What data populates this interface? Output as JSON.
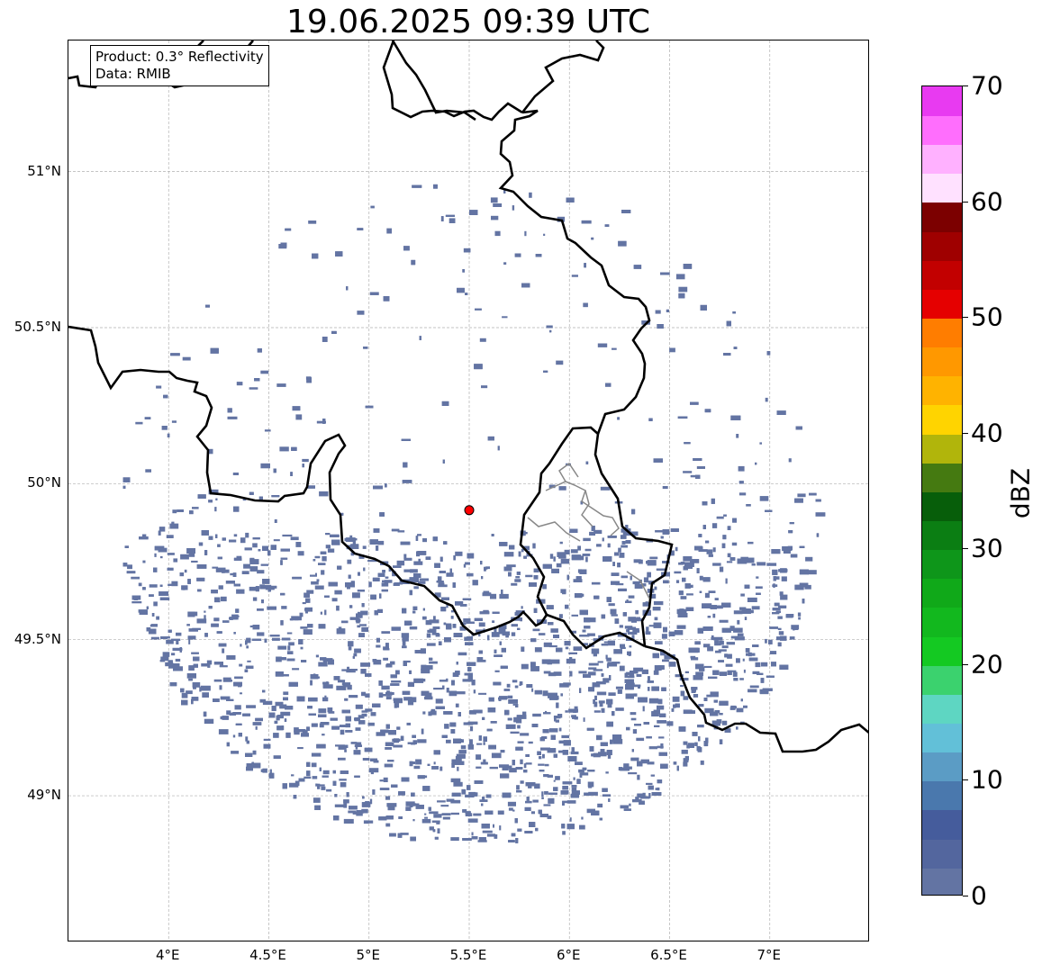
{
  "title": "19.06.2025 09:39 UTC",
  "info": {
    "product": "Product: 0.3° Reflectivity",
    "data_source": "Data: RMIB"
  },
  "map": {
    "lon_range": [
      3.5,
      7.5
    ],
    "lat_range": [
      48.53,
      51.42
    ],
    "radar_site": {
      "lon": 5.5,
      "lat": 49.915
    },
    "x_ticks": [
      {
        "lon": 4.0,
        "label": "4°E"
      },
      {
        "lon": 4.5,
        "label": "4.5°E"
      },
      {
        "lon": 5.0,
        "label": "5°E"
      },
      {
        "lon": 5.5,
        "label": "5.5°E"
      },
      {
        "lon": 6.0,
        "label": "6°E"
      },
      {
        "lon": 6.5,
        "label": "6.5°E"
      },
      {
        "lon": 7.0,
        "label": "7°E"
      }
    ],
    "y_ticks": [
      {
        "lat": 49.0,
        "label": "49°N"
      },
      {
        "lat": 49.5,
        "label": "49.5°N"
      },
      {
        "lat": 50.0,
        "label": "50°N"
      },
      {
        "lat": 50.5,
        "label": "50.5°N"
      },
      {
        "lat": 51.0,
        "label": "51°N"
      }
    ],
    "echo_color": "#6374a3",
    "border_color": "#000000",
    "province_color": "#808080"
  },
  "colorbar": {
    "label": "dBZ",
    "min": 0,
    "max": 70,
    "tick_values": [
      0,
      10,
      20,
      30,
      40,
      50,
      60,
      70
    ],
    "tick_labels": [
      "0",
      "10",
      "20",
      "30",
      "40",
      "50",
      "60",
      "70"
    ],
    "colors": [
      "#6374a3",
      "#53669e",
      "#455c9c",
      "#4a78ad",
      "#5b9cc5",
      "#62c0d8",
      "#5ed6c2",
      "#3bd26e",
      "#14c922",
      "#12b81e",
      "#10a919",
      "#0e961a",
      "#0b7e13",
      "#075e0a",
      "#457a11",
      "#b1b50b",
      "#ffd400",
      "#ffb300",
      "#ff9800",
      "#ff7d00",
      "#e50000",
      "#c20000",
      "#9f0000",
      "#7c0000",
      "#ffe1ff",
      "#ffb1ff",
      "#ff6efd",
      "#e83af1"
    ]
  }
}
